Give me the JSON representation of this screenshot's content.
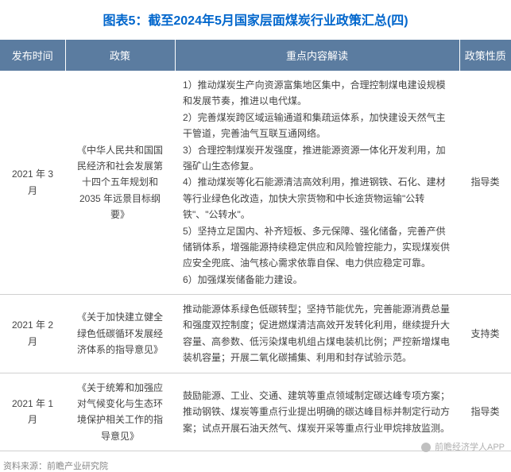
{
  "title": "图表5：截至2024年5月国家层面煤炭行业政策汇总(四)",
  "headers": {
    "time": "发布时间",
    "policy": "政策",
    "content": "重点内容解读",
    "nature": "政策性质"
  },
  "rows": [
    {
      "time": "2021 年 3 月",
      "policy": "《中华人民共和国国民经济和社会发展第十四个五年规划和2035 年远景目标纲要》",
      "content": [
        "1）推动煤炭生产向资源富集地区集中，合理控制煤电建设规模和发展节奏，推进以电代煤。",
        "2）完善煤炭跨区域运输通道和集疏运体系，加快建设天然气主干管道，完善油气互联互通网络。",
        "3）合理控制煤炭开发强度，推进能源资源一体化开发利用，加强矿山生态修复。",
        "4）推动煤炭等化石能源清洁高效利用，推进钢铁、石化、建材等行业绿色化改造，加快大宗货物和中长途货物运输\"公转铁\"、\"公转水\"。",
        "5）坚持立足国内、补齐短板、多元保障、强化储备，完善产供储销体系，增强能源持续稳定供应和风险管控能力，实现煤炭供应安全兜底、油气核心需求依靠自保、电力供应稳定可靠。",
        "6）加强煤炭储备能力建设。"
      ],
      "nature": "指导类"
    },
    {
      "time": "2021 年 2 月",
      "policy": "《关于加快建立健全绿色低碳循环发展经济体系的指导意见》",
      "content": [
        "推动能源体系绿色低碳转型；坚持节能优先，完善能源消费总量和强度双控制度；促进燃煤清洁高效开发转化利用，继续提升大容量、高参数、低污染煤电机组占煤电装机比例；严控新增煤电装机容量；开展二氧化碳捕集、利用和封存试验示范。"
      ],
      "nature": "支持类"
    },
    {
      "time": "2021 年 1 月",
      "policy": "《关于统筹和加强应对气候变化与生态环境保护相关工作的指导意见》",
      "content": [
        "鼓励能源、工业、交通、建筑等重点领域制定碳达峰专项方案；推动钢铁、煤炭等重点行业提出明确的碳达峰目标并制定行动方案；试点开展石油天然气、煤炭开采等重点行业甲烷排放监测。"
      ],
      "nature": "指导类"
    }
  ],
  "source": "资料来源：前瞻产业研究院",
  "watermark": "前瞻经济学人APP"
}
